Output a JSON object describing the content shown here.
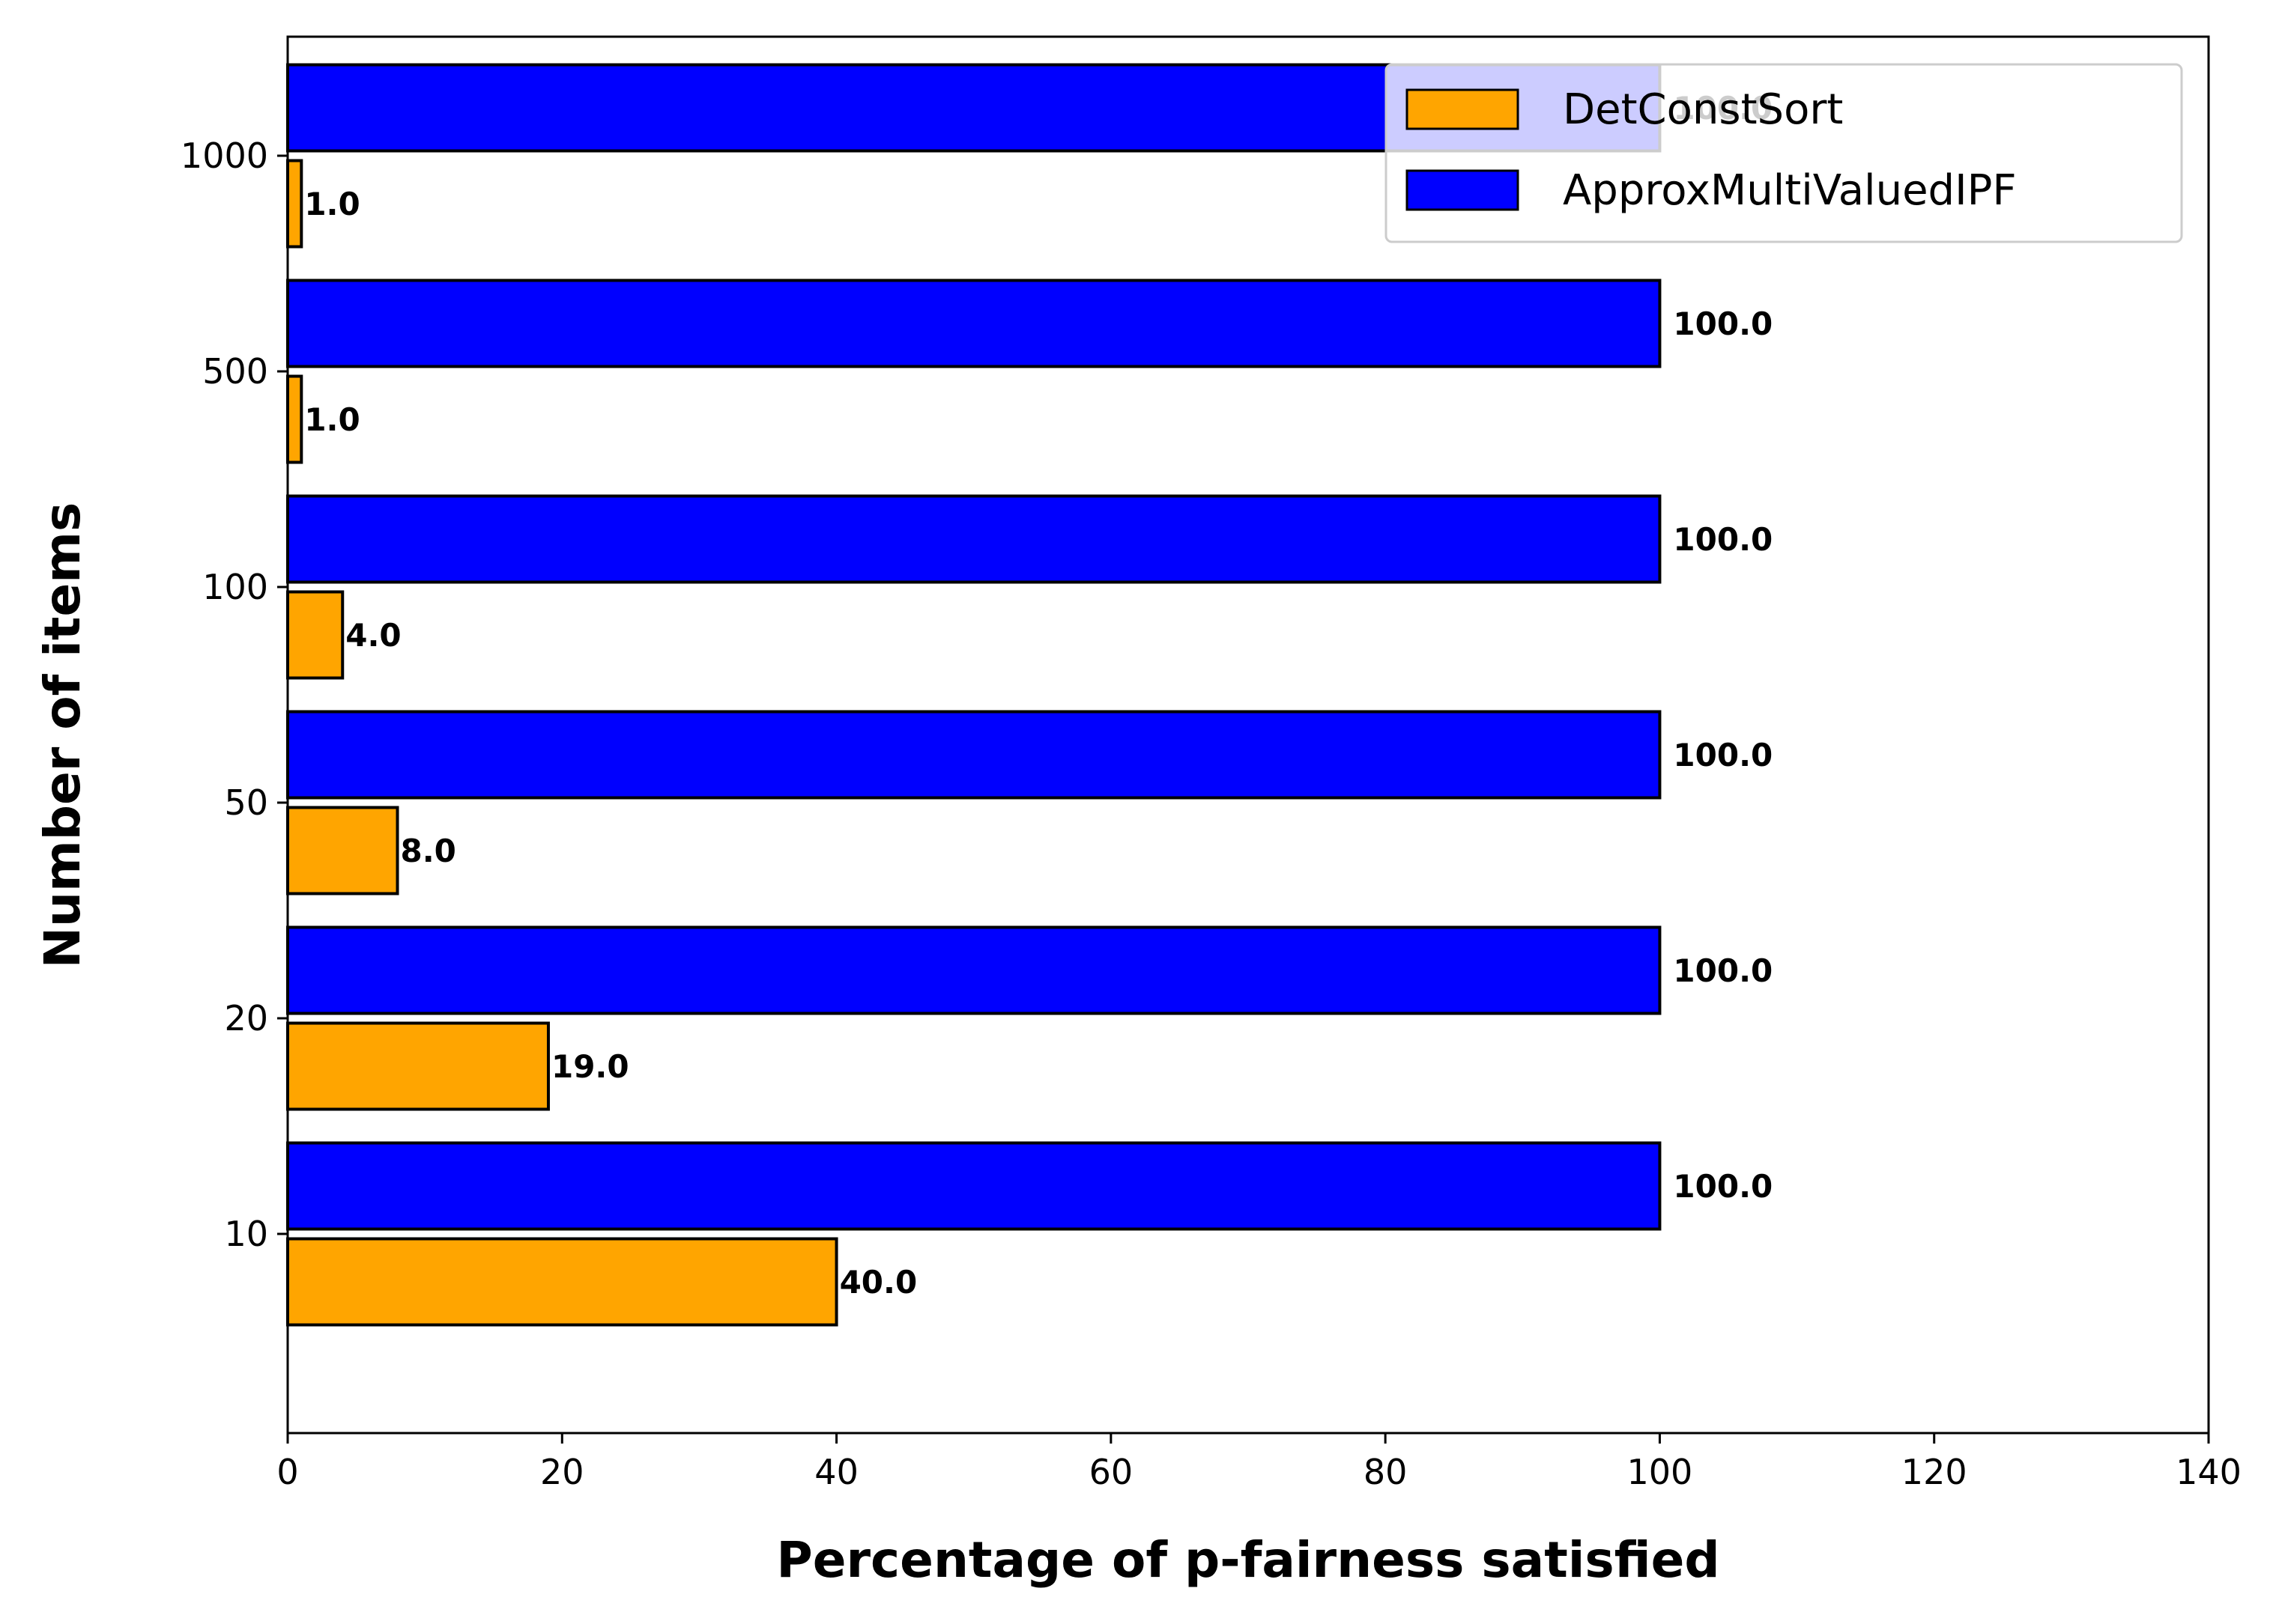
{
  "chart_data": {
    "type": "bar",
    "orientation": "horizontal",
    "xlabel": "Percentage of p-fairness satisfied",
    "ylabel": "Number of items",
    "xlim": [
      0,
      140
    ],
    "xticks": [
      0,
      20,
      40,
      60,
      80,
      100,
      120,
      140
    ],
    "categories": [
      "10",
      "20",
      "50",
      "100",
      "500",
      "1000"
    ],
    "series": [
      {
        "name": "DetConstSort",
        "color": "#FFA500",
        "values": [
          40.0,
          19.0,
          8.0,
          4.0,
          1.0,
          1.0
        ],
        "labels": [
          "40.0",
          "19.0",
          "8.0",
          "4.0",
          "1.0",
          "1.0"
        ]
      },
      {
        "name": "ApproxMultiValuedIPF",
        "color": "#0000FF",
        "values": [
          100.0,
          100.0,
          100.0,
          100.0,
          100.0,
          100.0
        ],
        "labels": [
          "100.0",
          "100.0",
          "100.0",
          "100.0",
          "100.0",
          "100.0"
        ]
      }
    ],
    "legend": {
      "placement": "upper right"
    },
    "grid": false
  }
}
